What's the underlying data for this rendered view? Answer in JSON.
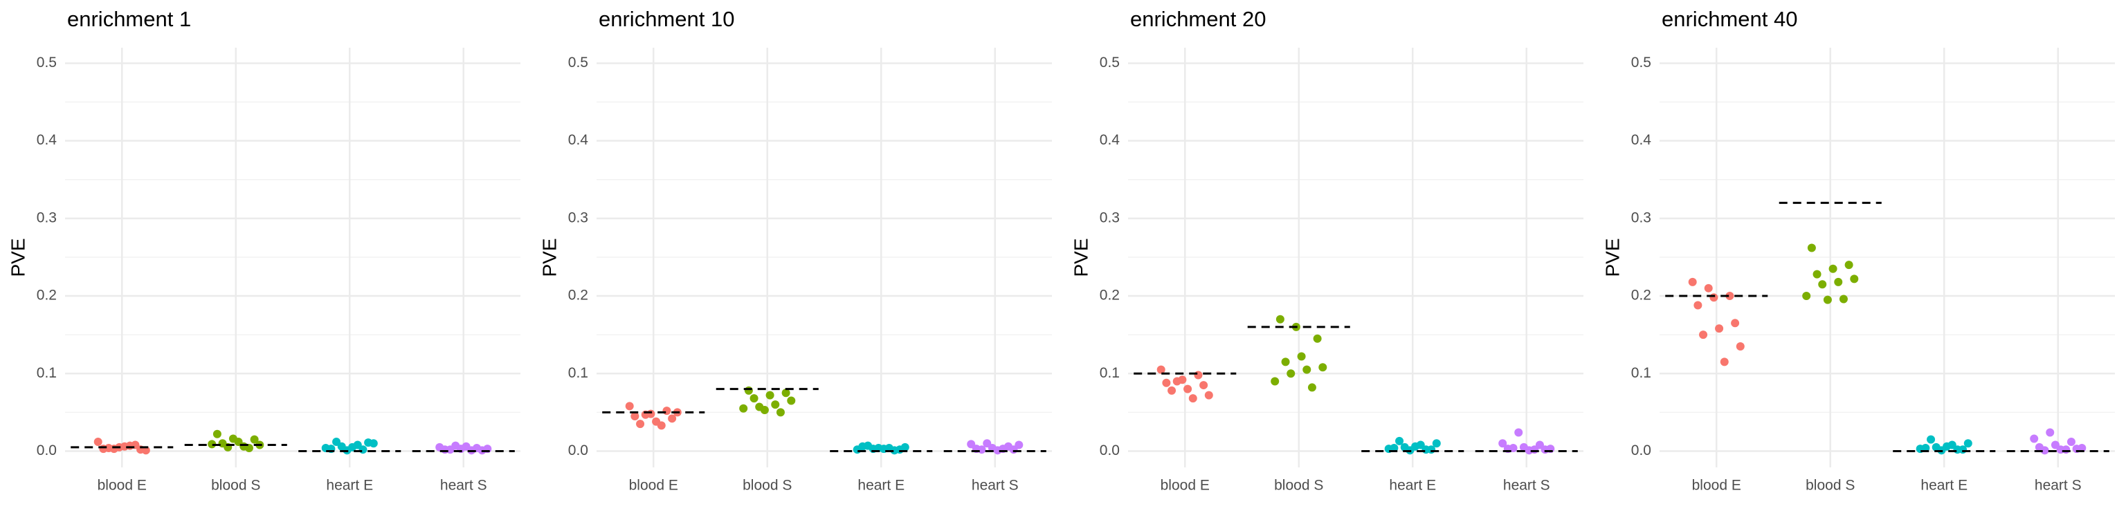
{
  "chart_data": [
    {
      "type": "strip",
      "title": "enrichment 1",
      "ylabel": "PVE",
      "categories": [
        "blood E",
        "blood S",
        "heart E",
        "heart S"
      ],
      "colors": [
        "#f8766d",
        "#7cae00",
        "#00bfc4",
        "#c77cff"
      ],
      "values": [
        [
          0.012,
          0.008,
          0.005,
          0.003,
          0.002,
          0.006,
          0.004,
          0.001,
          0.007,
          0.003
        ],
        [
          0.022,
          0.015,
          0.012,
          0.01,
          0.008,
          0.006,
          0.005,
          0.009,
          0.004,
          0.016
        ],
        [
          0.012,
          0.01,
          0.008,
          0.006,
          0.004,
          0.002,
          0.001,
          0.003,
          0.011,
          0.005
        ],
        [
          0.007,
          0.005,
          0.004,
          0.003,
          0.002,
          0.001,
          0.006,
          0.002,
          0.003,
          0.001
        ]
      ],
      "reference": [
        0.005,
        0.008,
        0,
        0
      ],
      "ylim": [
        -0.021,
        0.52
      ],
      "yticks": [
        {
          "value": 0,
          "label": "0.0"
        },
        0.1,
        0.2,
        0.3,
        0.4,
        0.5
      ],
      "grid": true
    },
    {
      "type": "strip",
      "title": "enrichment 10",
      "ylabel": "PVE",
      "categories": [
        "blood E",
        "blood S",
        "heart E",
        "heart S"
      ],
      "colors": [
        "#f8766d",
        "#7cae00",
        "#00bfc4",
        "#c77cff"
      ],
      "values": [
        [
          0.058,
          0.052,
          0.048,
          0.045,
          0.042,
          0.038,
          0.035,
          0.05,
          0.033,
          0.047
        ],
        [
          0.078,
          0.075,
          0.072,
          0.068,
          0.065,
          0.06,
          0.057,
          0.055,
          0.05,
          0.053
        ],
        [
          0.007,
          0.005,
          0.004,
          0.003,
          0.002,
          0.001,
          0.004,
          0.006,
          0.002,
          0.003
        ],
        [
          0.01,
          0.009,
          0.006,
          0.004,
          0.003,
          0.002,
          0.001,
          0.002,
          0.008,
          0.003
        ]
      ],
      "reference": [
        0.05,
        0.08,
        0,
        0
      ],
      "ylim": [
        -0.021,
        0.52
      ],
      "yticks": [
        {
          "value": 0,
          "label": "0.0"
        },
        0.1,
        0.2,
        0.3,
        0.4,
        0.5
      ],
      "grid": true
    },
    {
      "type": "strip",
      "title": "enrichment 20",
      "ylabel": "PVE",
      "categories": [
        "blood E",
        "blood S",
        "heart E",
        "heart S"
      ],
      "colors": [
        "#f8766d",
        "#7cae00",
        "#00bfc4",
        "#c77cff"
      ],
      "values": [
        [
          0.105,
          0.098,
          0.092,
          0.088,
          0.085,
          0.08,
          0.078,
          0.072,
          0.068,
          0.09
        ],
        [
          0.17,
          0.145,
          0.122,
          0.115,
          0.108,
          0.105,
          0.1,
          0.09,
          0.082,
          0.16
        ],
        [
          0.013,
          0.01,
          0.008,
          0.005,
          0.003,
          0.002,
          0.001,
          0.004,
          0.002,
          0.006
        ],
        [
          0.024,
          0.01,
          0.008,
          0.005,
          0.003,
          0.002,
          0.001,
          0.004,
          0.003,
          0.002
        ]
      ],
      "reference": [
        0.1,
        0.16,
        0,
        0
      ],
      "ylim": [
        -0.021,
        0.52
      ],
      "yticks": [
        {
          "value": 0,
          "label": "0.0"
        },
        0.1,
        0.2,
        0.3,
        0.4,
        0.5
      ],
      "grid": true
    },
    {
      "type": "strip",
      "title": "enrichment 40",
      "ylabel": "PVE",
      "categories": [
        "blood E",
        "blood S",
        "heart E",
        "heart S"
      ],
      "colors": [
        "#f8766d",
        "#7cae00",
        "#00bfc4",
        "#c77cff"
      ],
      "values": [
        [
          0.218,
          0.2,
          0.198,
          0.188,
          0.165,
          0.158,
          0.15,
          0.135,
          0.115,
          0.21
        ],
        [
          0.262,
          0.24,
          0.235,
          0.228,
          0.222,
          0.218,
          0.215,
          0.2,
          0.196,
          0.195
        ],
        [
          0.015,
          0.01,
          0.008,
          0.005,
          0.003,
          0.002,
          0.001,
          0.004,
          0.002,
          0.006
        ],
        [
          0.024,
          0.016,
          0.012,
          0.008,
          0.005,
          0.003,
          0.002,
          0.001,
          0.004,
          0.002
        ]
      ],
      "reference": [
        0.2,
        0.32,
        0,
        0
      ],
      "ylim": [
        -0.021,
        0.52
      ],
      "yticks": [
        {
          "value": 0,
          "label": "0.0"
        },
        0.1,
        0.2,
        0.3,
        0.4,
        0.5
      ],
      "grid": true
    }
  ]
}
